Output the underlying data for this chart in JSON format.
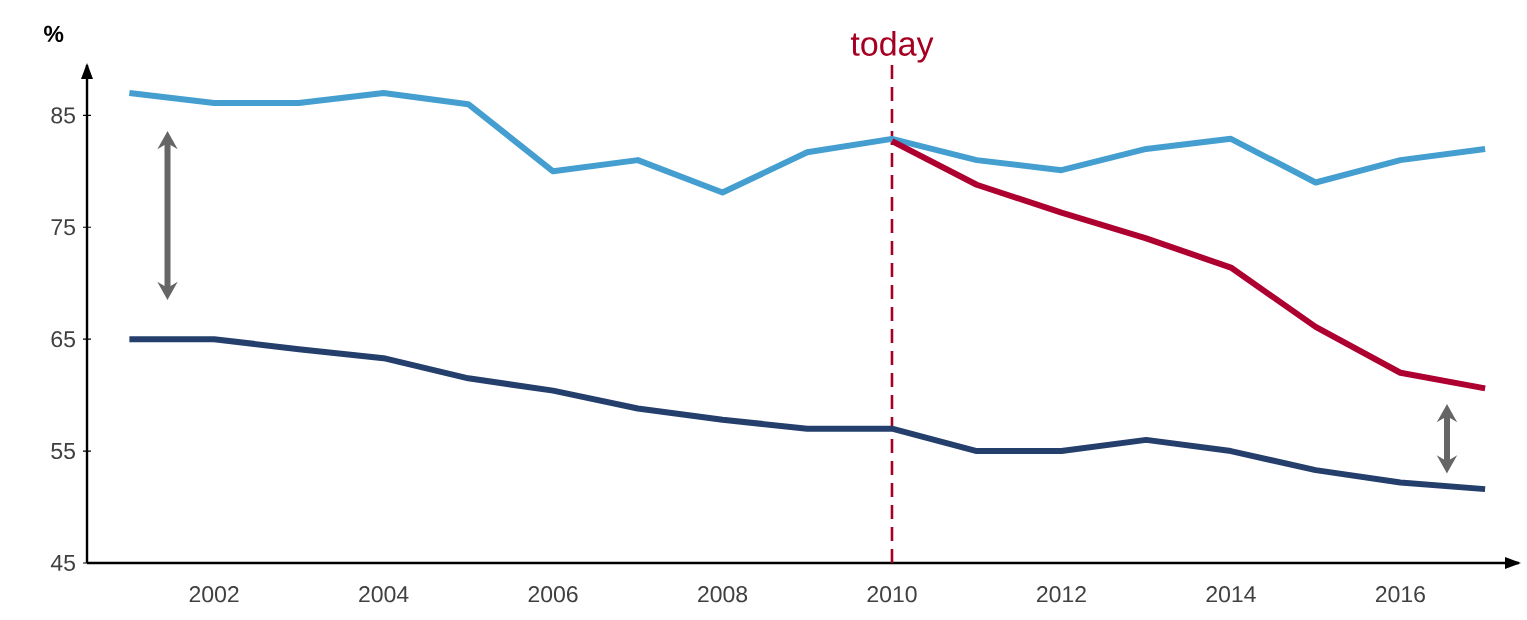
{
  "chart_data": {
    "type": "line",
    "ylabel": "%",
    "x": [
      2001,
      2002,
      2003,
      2004,
      2005,
      2006,
      2007,
      2008,
      2009,
      2010,
      2011,
      2012,
      2013,
      2014,
      2015,
      2016,
      2017
    ],
    "series": [
      {
        "color": "#449fd0",
        "values": [
          87,
          86.1,
          86.1,
          87,
          86,
          80,
          81,
          78.1,
          81.7,
          82.9,
          81,
          80.1,
          82,
          82.9,
          79,
          81,
          82
        ]
      },
      {
        "color": "#243f6b",
        "values": [
          65,
          65,
          64.1,
          63.3,
          61.5,
          60.4,
          58.8,
          57.8,
          57,
          57,
          55,
          55,
          56,
          55,
          53.3,
          52.2,
          51.6
        ]
      },
      {
        "color": "#ad0030",
        "values": [
          null,
          null,
          null,
          null,
          null,
          null,
          null,
          null,
          null,
          82.7,
          78.8,
          76.3,
          74,
          71.4,
          66.1,
          62,
          60.6
        ]
      }
    ],
    "xlim": [
      2000.5,
      2017.4
    ],
    "ylim": [
      45,
      89.5
    ],
    "xticks": [
      2002,
      2004,
      2006,
      2008,
      2010,
      2012,
      2014,
      2016
    ],
    "yticks": [
      45,
      55,
      65,
      75,
      85
    ],
    "ref_lines": [
      {
        "axis": "x",
        "value": 2010,
        "label": "today",
        "color": "#a50021",
        "line_style": "dashed"
      }
    ],
    "grid": false,
    "marker": "none",
    "line_style": "solid"
  }
}
